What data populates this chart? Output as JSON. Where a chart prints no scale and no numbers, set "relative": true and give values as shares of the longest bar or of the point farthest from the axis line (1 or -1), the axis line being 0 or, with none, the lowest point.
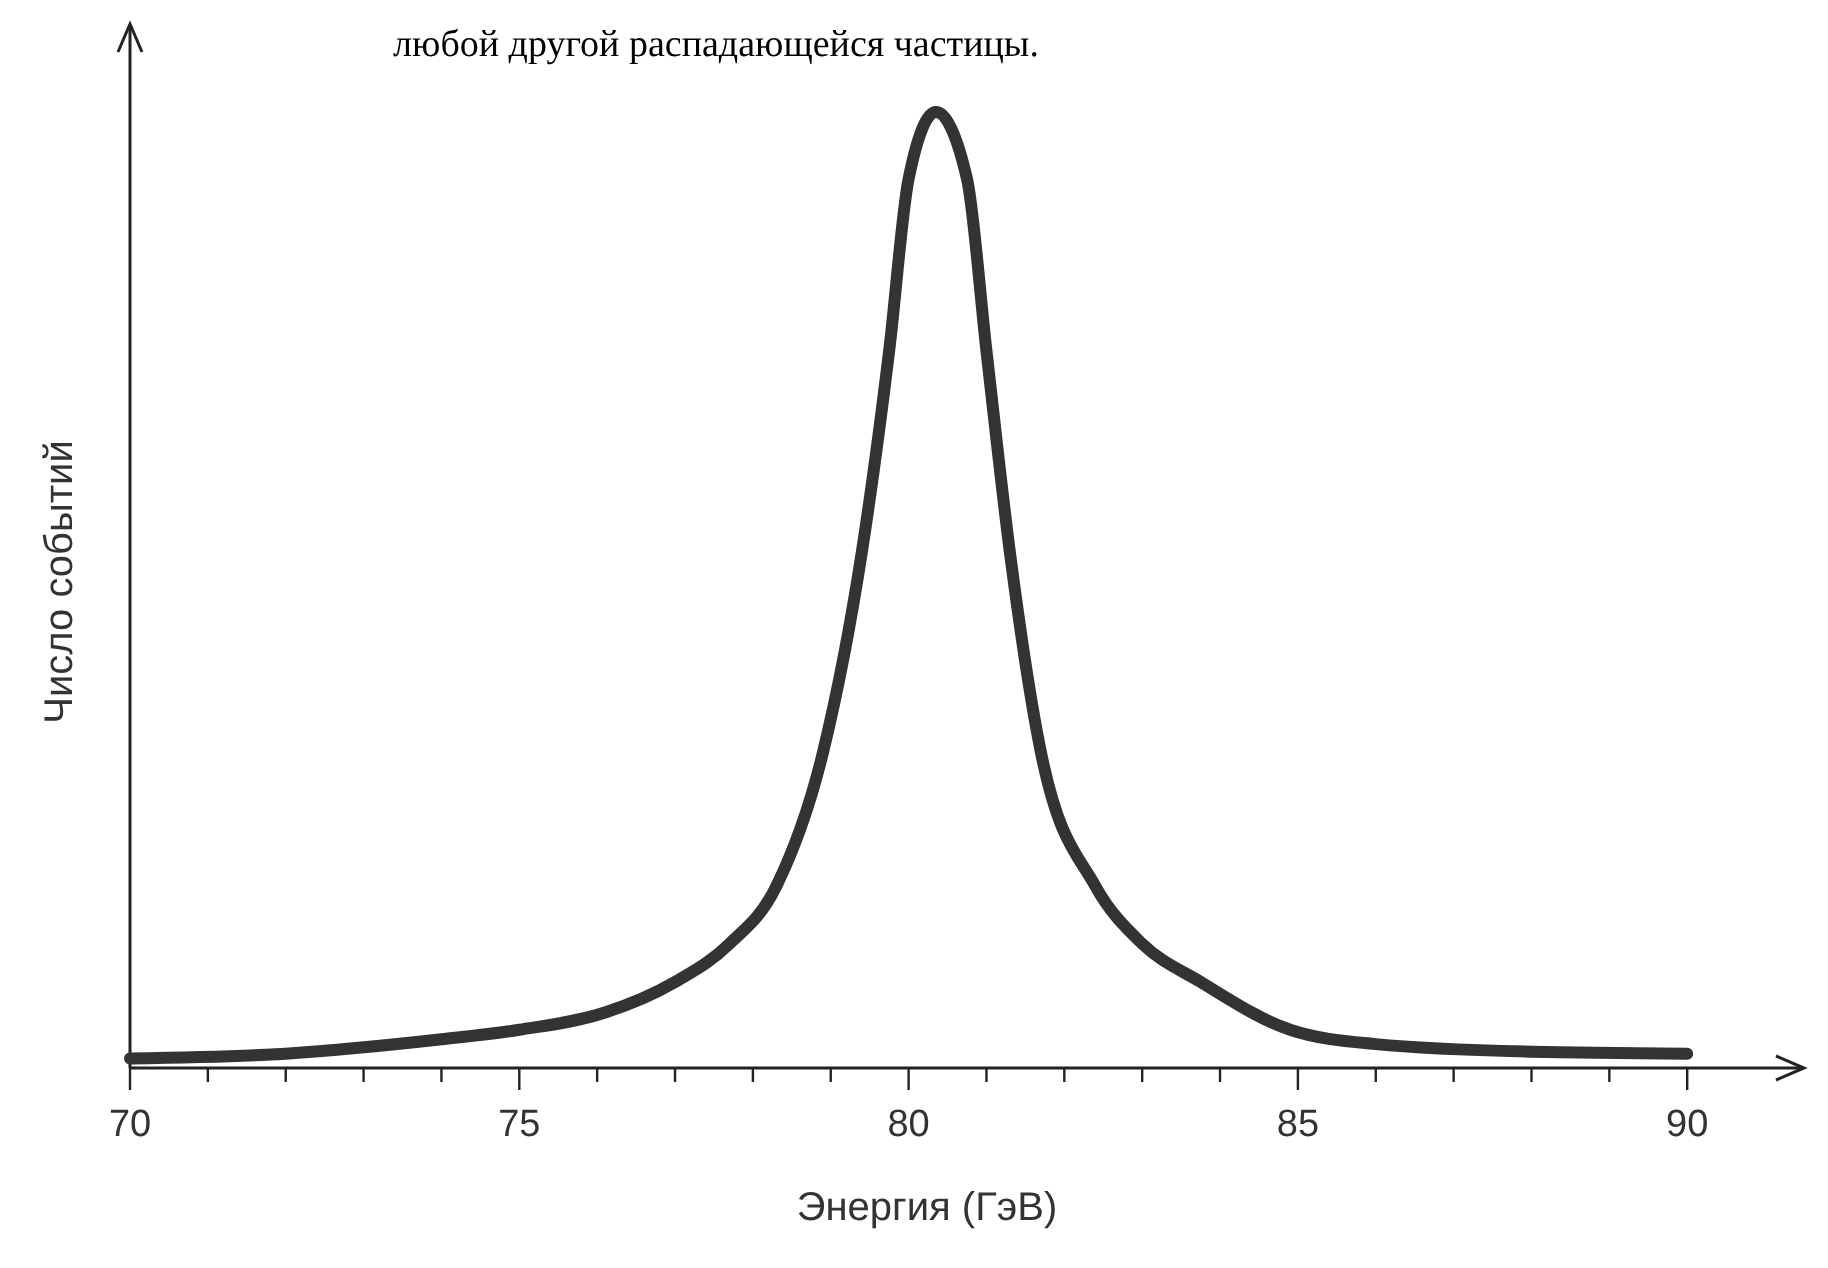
{
  "chart_data": {
    "type": "line",
    "relative": true,
    "xlabel": "Энергия (ГэВ)",
    "ylabel": "Число событий",
    "annotations": [
      "любой другой распадающейся частицы."
    ],
    "xlim": [
      70,
      91.5
    ],
    "xticks": [
      70,
      {
        "value": 71,
        "label": null
      },
      {
        "value": 72,
        "label": null
      },
      {
        "value": 73,
        "label": null
      },
      {
        "value": 74,
        "label": null
      },
      75,
      {
        "value": 76,
        "label": null
      },
      {
        "value": 77,
        "label": null
      },
      {
        "value": 78,
        "label": null
      },
      {
        "value": 79,
        "label": null
      },
      80,
      {
        "value": 81,
        "label": null
      },
      {
        "value": 82,
        "label": null
      },
      {
        "value": 83,
        "label": null
      },
      {
        "value": 84,
        "label": null
      },
      85,
      {
        "value": 86,
        "label": null
      },
      {
        "value": 87,
        "label": null
      },
      {
        "value": 88,
        "label": null
      },
      {
        "value": 89,
        "label": null
      },
      90
    ],
    "series": [
      {
        "color": "#333333",
        "x": [
          70,
          72,
          74,
          75,
          76.1,
          77,
          77.7,
          78.3,
          78.9,
          79.4,
          79.75,
          80,
          80.35,
          80.75,
          81,
          81.3,
          81.7,
          82.4,
          83,
          83.75,
          84.9,
          86,
          88,
          90
        ],
        "values": [
          0.01,
          0.015,
          0.03,
          0.04,
          0.058,
          0.09,
          0.13,
          0.19,
          0.33,
          0.54,
          0.75,
          0.93,
          1,
          0.93,
          0.75,
          0.54,
          0.33,
          0.19,
          0.13,
          0.09,
          0.04,
          0.025,
          0.017,
          0.015
        ]
      }
    ],
    "line_style": "solid",
    "marker": "none",
    "grid": false
  }
}
